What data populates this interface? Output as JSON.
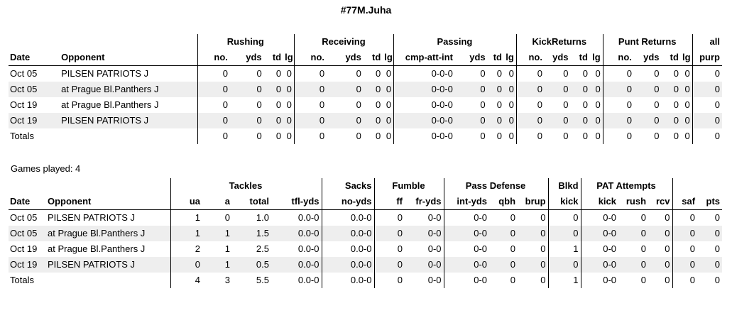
{
  "title": "#77M.Juha",
  "offense": {
    "groups": [
      "Rushing",
      "Receiving",
      "Passing",
      "KickReturns",
      "Punt Returns",
      "all"
    ],
    "headers": [
      "Date",
      "Opponent",
      "no.",
      "yds",
      "td",
      "lg",
      "no.",
      "yds",
      "td",
      "lg",
      "cmp-att-int",
      "yds",
      "td",
      "lg",
      "no.",
      "yds",
      "td",
      "lg",
      "no.",
      "yds",
      "td",
      "lg",
      "purp"
    ],
    "rows": [
      [
        "Oct 05",
        "PILSEN PATRIOTS J",
        "0",
        "0",
        "0",
        "0",
        "0",
        "0",
        "0",
        "0",
        "0-0-0",
        "0",
        "0",
        "0",
        "0",
        "0",
        "0",
        "0",
        "0",
        "0",
        "0",
        "0",
        "0"
      ],
      [
        "Oct 05",
        "at Prague Bl.Panthers J",
        "0",
        "0",
        "0",
        "0",
        "0",
        "0",
        "0",
        "0",
        "0-0-0",
        "0",
        "0",
        "0",
        "0",
        "0",
        "0",
        "0",
        "0",
        "0",
        "0",
        "0",
        "0"
      ],
      [
        "Oct 19",
        "at Prague Bl.Panthers J",
        "0",
        "0",
        "0",
        "0",
        "0",
        "0",
        "0",
        "0",
        "0-0-0",
        "0",
        "0",
        "0",
        "0",
        "0",
        "0",
        "0",
        "0",
        "0",
        "0",
        "0",
        "0"
      ],
      [
        "Oct 19",
        "PILSEN PATRIOTS J",
        "0",
        "0",
        "0",
        "0",
        "0",
        "0",
        "0",
        "0",
        "0-0-0",
        "0",
        "0",
        "0",
        "0",
        "0",
        "0",
        "0",
        "0",
        "0",
        "0",
        "0",
        "0"
      ]
    ],
    "totals": [
      "Totals",
      "",
      "0",
      "0",
      "0",
      "0",
      "0",
      "0",
      "0",
      "0",
      "0-0-0",
      "0",
      "0",
      "0",
      "0",
      "0",
      "0",
      "0",
      "0",
      "0",
      "0",
      "0",
      "0"
    ]
  },
  "games_played": "Games played: 4",
  "defense": {
    "groups": [
      "Tackles",
      "Sacks",
      "Fumble",
      "Pass Defense",
      "Blkd",
      "PAT Attempts"
    ],
    "headers": [
      "Date",
      "Opponent",
      "ua",
      "a",
      "total",
      "tfl-yds",
      "no-yds",
      "ff",
      "fr-yds",
      "int-yds",
      "qbh",
      "brup",
      "kick",
      "kick",
      "rush",
      "rcv",
      "saf",
      "pts"
    ],
    "rows": [
      [
        "Oct 05",
        "PILSEN PATRIOTS J",
        "1",
        "0",
        "1.0",
        "0.0-0",
        "0.0-0",
        "0",
        "0-0",
        "0-0",
        "0",
        "0",
        "0",
        "0-0",
        "0",
        "0",
        "0",
        "0"
      ],
      [
        "Oct 05",
        "at Prague Bl.Panthers J",
        "1",
        "1",
        "1.5",
        "0.0-0",
        "0.0-0",
        "0",
        "0-0",
        "0-0",
        "0",
        "0",
        "0",
        "0-0",
        "0",
        "0",
        "0",
        "0"
      ],
      [
        "Oct 19",
        "at Prague Bl.Panthers J",
        "2",
        "1",
        "2.5",
        "0.0-0",
        "0.0-0",
        "0",
        "0-0",
        "0-0",
        "0",
        "0",
        "1",
        "0-0",
        "0",
        "0",
        "0",
        "0"
      ],
      [
        "Oct 19",
        "PILSEN PATRIOTS J",
        "0",
        "1",
        "0.5",
        "0.0-0",
        "0.0-0",
        "0",
        "0-0",
        "0-0",
        "0",
        "0",
        "0",
        "0-0",
        "0",
        "0",
        "0",
        "0"
      ]
    ],
    "totals": [
      "Totals",
      "",
      "4",
      "3",
      "5.5",
      "0.0-0",
      "0.0-0",
      "0",
      "0-0",
      "0-0",
      "0",
      "0",
      "1",
      "0-0",
      "0",
      "0",
      "0",
      "0"
    ]
  }
}
